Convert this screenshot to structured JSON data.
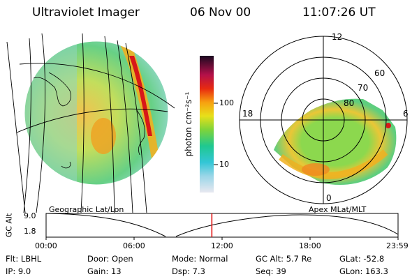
{
  "header": {
    "instrument": "Ultraviolet Imager",
    "date": "06 Nov 00",
    "time": "11:07:26 UT"
  },
  "colorbar": {
    "unit_label": "photon cm⁻²s⁻¹",
    "ticks": [
      "100",
      "10"
    ]
  },
  "panels": {
    "left_label": "Geographic Lat/Lon",
    "right_label": "Apex MLat/MLT",
    "polar": {
      "mlt_labels": [
        "12",
        "18",
        "6",
        "0"
      ],
      "lat_labels": [
        "60",
        "70",
        "80"
      ]
    }
  },
  "altitude_plot": {
    "ylabel": "GC Alt",
    "y_ticks": [
      "9.0",
      "1.8"
    ],
    "x_ticks": [
      "00:00",
      "06:00",
      "12:00",
      "18:00",
      "23:59"
    ],
    "current_time_fraction": 0.471
  },
  "status": {
    "flt": "Flt: LBHL",
    "ip": "IP:  9.0",
    "door": "Door: Open",
    "gain": "Gain: 13",
    "mode": "Mode: Normal",
    "dsp": "Dsp:     7.3",
    "gc_alt": "GC Alt: 5.7 Re",
    "seq": "Seq: 39",
    "glat": "GLat: -52.8",
    "glon": "GLon: 163.3"
  },
  "colors": {
    "cursor": "#e00000",
    "background": "#ffffff"
  }
}
